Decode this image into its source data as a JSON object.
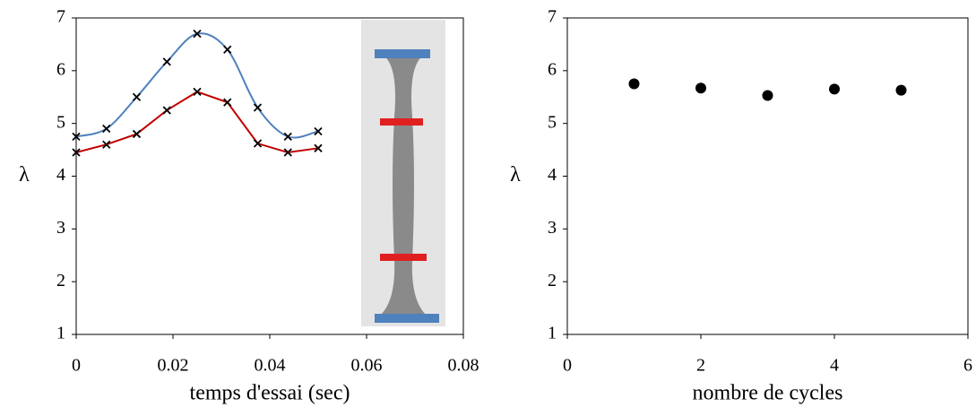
{
  "chart_data": [
    {
      "type": "line",
      "xlabel": "temps d'essai (sec)",
      "ylabel": "λ",
      "x": [
        0,
        0.00625,
        0.0125,
        0.01875,
        0.025,
        0.03125,
        0.0375,
        0.04375,
        0.05
      ],
      "series": [
        {
          "color": "#4f81bd",
          "smooth": true,
          "values": [
            4.75,
            4.9,
            5.5,
            6.17,
            6.7,
            6.4,
            5.3,
            4.75,
            4.85
          ]
        },
        {
          "color": "#c00000",
          "smooth": false,
          "values": [
            4.45,
            4.6,
            4.8,
            5.25,
            5.6,
            5.4,
            4.62,
            4.45,
            4.53
          ]
        }
      ],
      "marker_color": "#000000",
      "xlim": [
        0,
        0.08
      ],
      "xticks": [
        0,
        0.02,
        0.04,
        0.06,
        0.08
      ],
      "ylim": [
        1,
        7
      ],
      "yticks": [
        1,
        2,
        3,
        4,
        5,
        6,
        7
      ]
    },
    {
      "type": "scatter",
      "xlabel": "nombre de cycles",
      "ylabel": "λ",
      "x": [
        1,
        2,
        3,
        4,
        5
      ],
      "values": [
        5.75,
        5.67,
        5.53,
        5.65,
        5.63
      ],
      "color": "#000000",
      "xlim": [
        0,
        6
      ],
      "xticks": [
        0,
        2,
        4,
        6
      ],
      "ylim": [
        1,
        7
      ],
      "yticks": [
        1,
        2,
        3,
        4,
        5,
        6,
        7
      ]
    }
  ]
}
